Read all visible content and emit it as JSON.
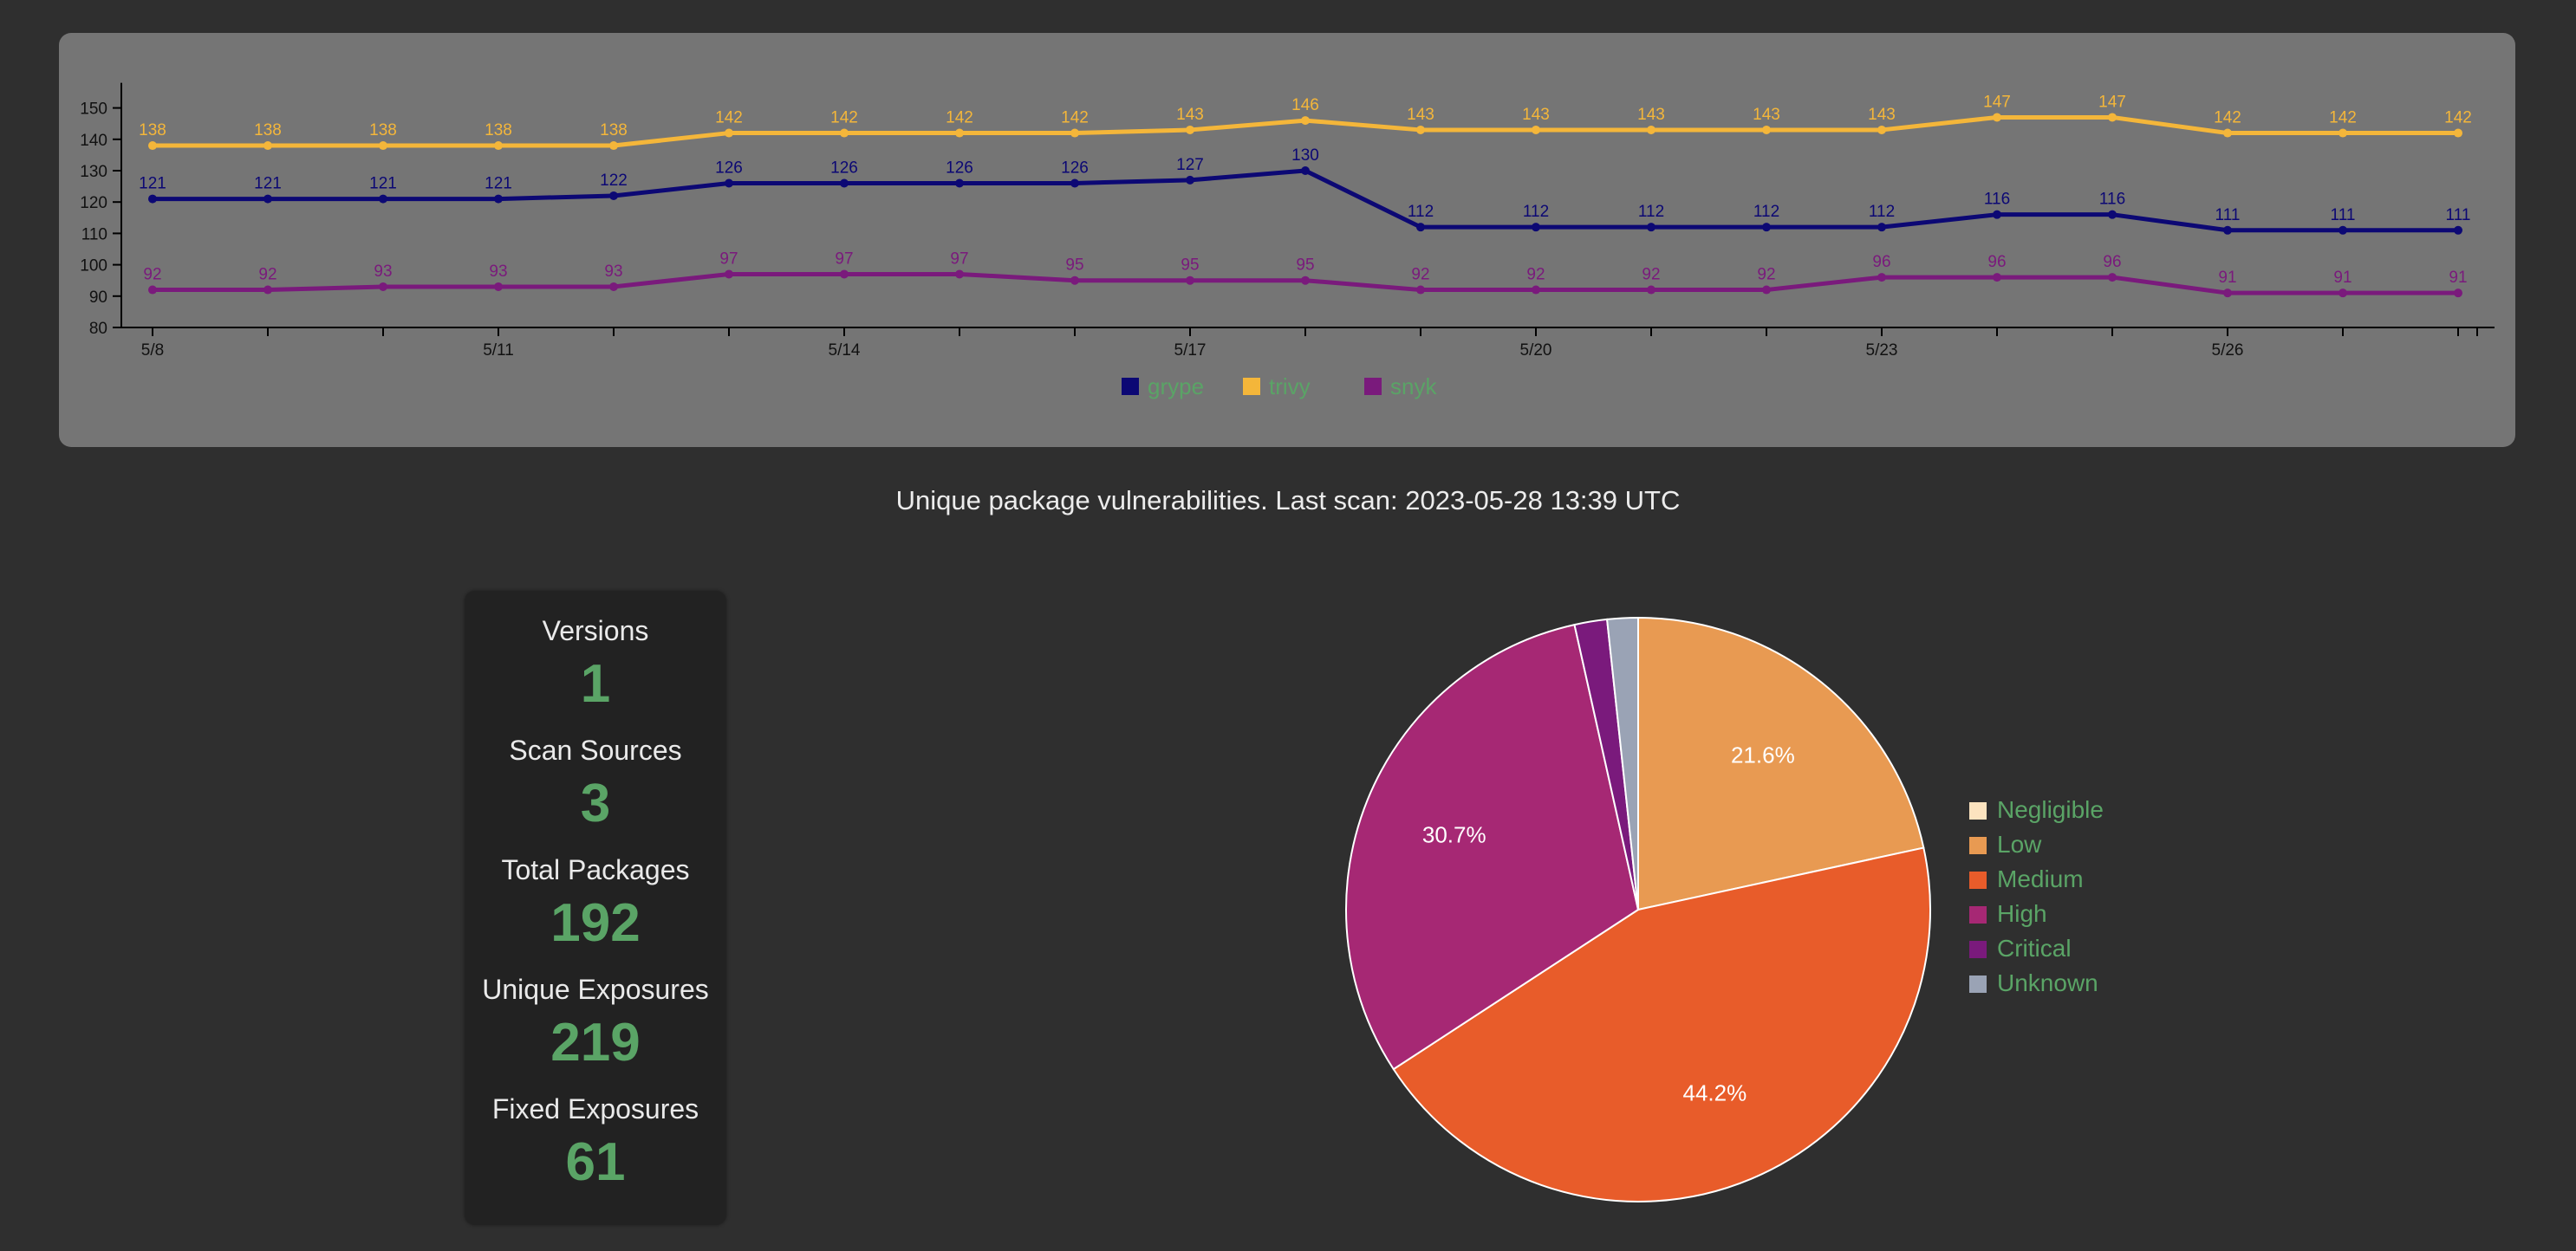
{
  "line_panel": {
    "legend": [
      {
        "name": "grype",
        "color": "#0c0874"
      },
      {
        "name": "trivy",
        "color": "#f4b63a"
      },
      {
        "name": "snyk",
        "color": "#7a1a7c"
      }
    ]
  },
  "caption": "Unique package vulnerabilities. Last scan: 2023-05-28 13:39 UTC",
  "stats": [
    {
      "label": "Versions",
      "value": "1"
    },
    {
      "label": "Scan Sources",
      "value": "3"
    },
    {
      "label": "Total Packages",
      "value": "192"
    },
    {
      "label": "Unique Exposures",
      "value": "219"
    },
    {
      "label": "Fixed Exposures",
      "value": "61"
    }
  ],
  "chart_data": [
    {
      "type": "line",
      "title": "",
      "xlabel": "",
      "ylabel": "",
      "x": [
        "5/8",
        "5/9",
        "5/10",
        "5/11",
        "5/12",
        "5/13",
        "5/14",
        "5/15",
        "5/16",
        "5/17",
        "5/18",
        "5/19",
        "5/20",
        "5/21",
        "5/22",
        "5/23",
        "5/24",
        "5/25",
        "5/26",
        "5/27",
        "5/28"
      ],
      "x_ticks": [
        "5/8",
        "5/11",
        "5/14",
        "5/17",
        "5/20",
        "5/23",
        "5/26"
      ],
      "ylim": [
        80,
        158
      ],
      "y_ticks": [
        80,
        90,
        100,
        110,
        120,
        130,
        140,
        150
      ],
      "series": [
        {
          "name": "trivy",
          "color": "#f4b63a",
          "values": [
            138,
            138,
            138,
            138,
            138,
            142,
            142,
            142,
            142,
            143,
            146,
            143,
            143,
            143,
            143,
            143,
            147,
            147,
            142,
            142,
            142
          ]
        },
        {
          "name": "grype",
          "color": "#0c0874",
          "values": [
            121,
            121,
            121,
            121,
            122,
            126,
            126,
            126,
            126,
            127,
            130,
            112,
            112,
            112,
            112,
            112,
            116,
            116,
            111,
            111,
            111
          ]
        },
        {
          "name": "snyk",
          "color": "#7a1a7c",
          "values": [
            92,
            92,
            93,
            93,
            93,
            97,
            97,
            97,
            95,
            95,
            95,
            92,
            92,
            92,
            92,
            96,
            96,
            96,
            91,
            91,
            91
          ]
        }
      ],
      "legend_position": "bottom-center"
    },
    {
      "type": "pie",
      "title": "",
      "labels": [
        "Negligible",
        "Low",
        "Medium",
        "High",
        "Critical",
        "Unknown"
      ],
      "colors": [
        "#fce3bf",
        "#e89a52",
        "#e85c2a",
        "#a62874",
        "#7a1a7c",
        "#9aa3b5"
      ],
      "values": [
        0,
        21.6,
        44.2,
        30.7,
        1.8,
        1.7
      ],
      "data_labels": {
        "Medium": "44.2%",
        "High": "30.7%",
        "Low": "21.6%"
      },
      "legend_position": "right"
    }
  ]
}
